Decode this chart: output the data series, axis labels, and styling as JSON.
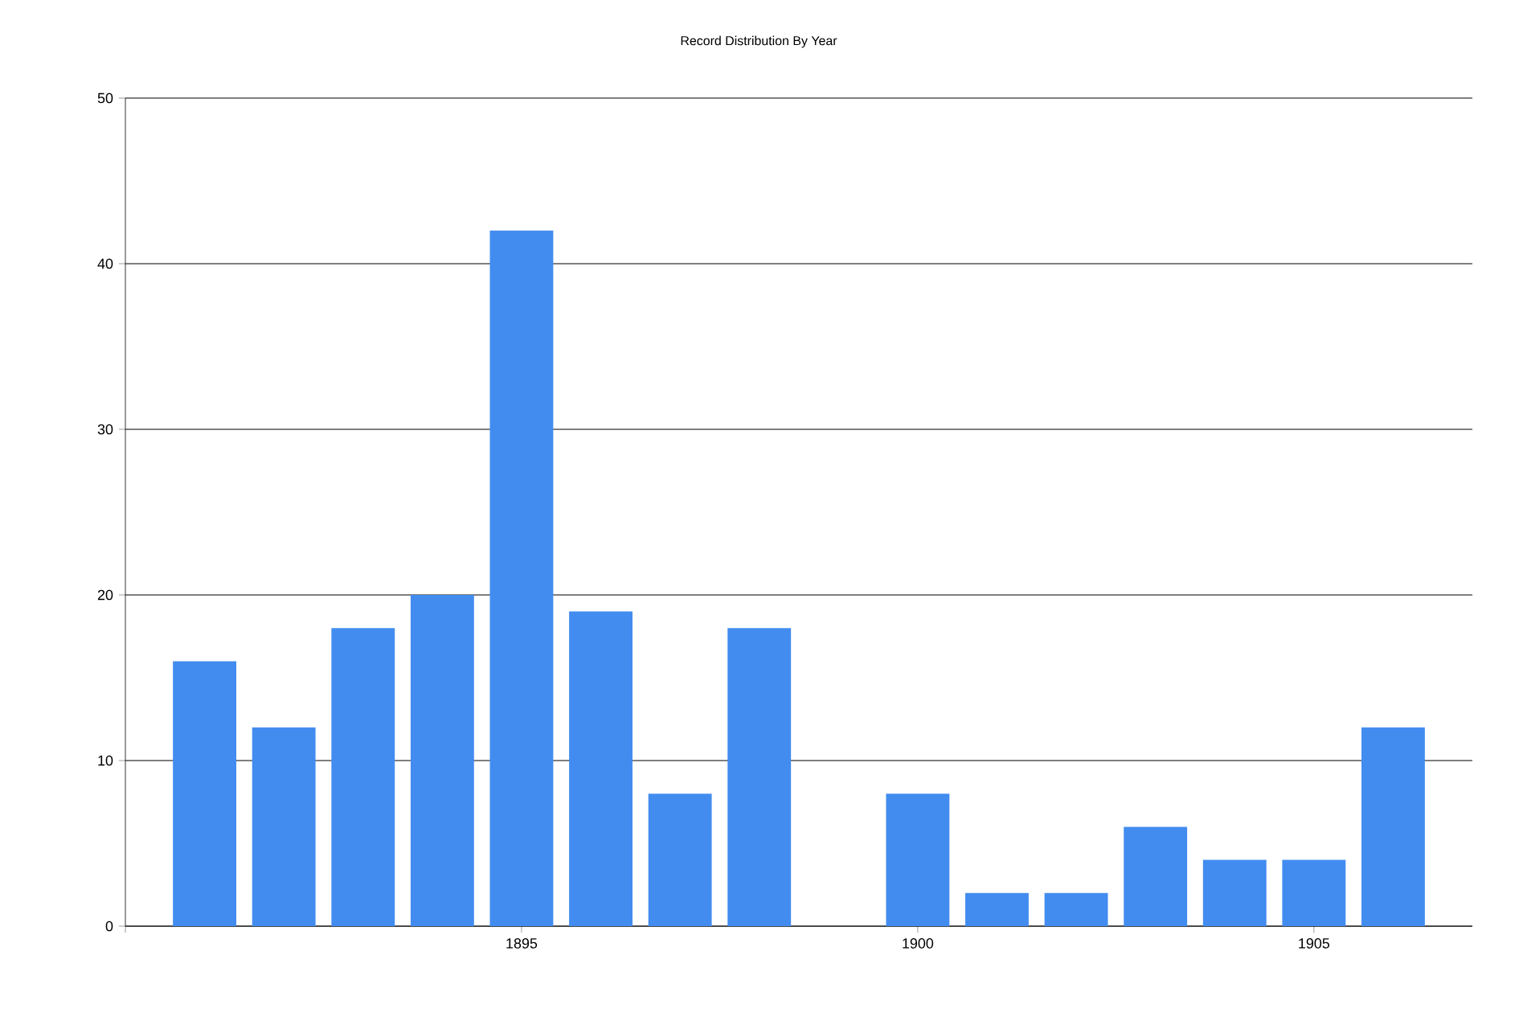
{
  "chart_data": {
    "type": "bar",
    "title": "Record Distribution By Year",
    "x": [
      1891,
      1892,
      1893,
      1894,
      1895,
      1896,
      1897,
      1898,
      1900,
      1901,
      1902,
      1903,
      1904,
      1905,
      1906
    ],
    "values": [
      16,
      12,
      18,
      20,
      42,
      19,
      8,
      18,
      8,
      2,
      2,
      6,
      4,
      4,
      12
    ],
    "color": "#428cf0",
    "xlim": [
      1890,
      1907
    ],
    "xticks": [
      {
        "value": 1890,
        "label": null
      },
      1895,
      1900,
      1905
    ],
    "ylim": [
      0,
      50
    ],
    "yticks": [
      0,
      10,
      20,
      30,
      40,
      50
    ],
    "grid": "y"
  }
}
